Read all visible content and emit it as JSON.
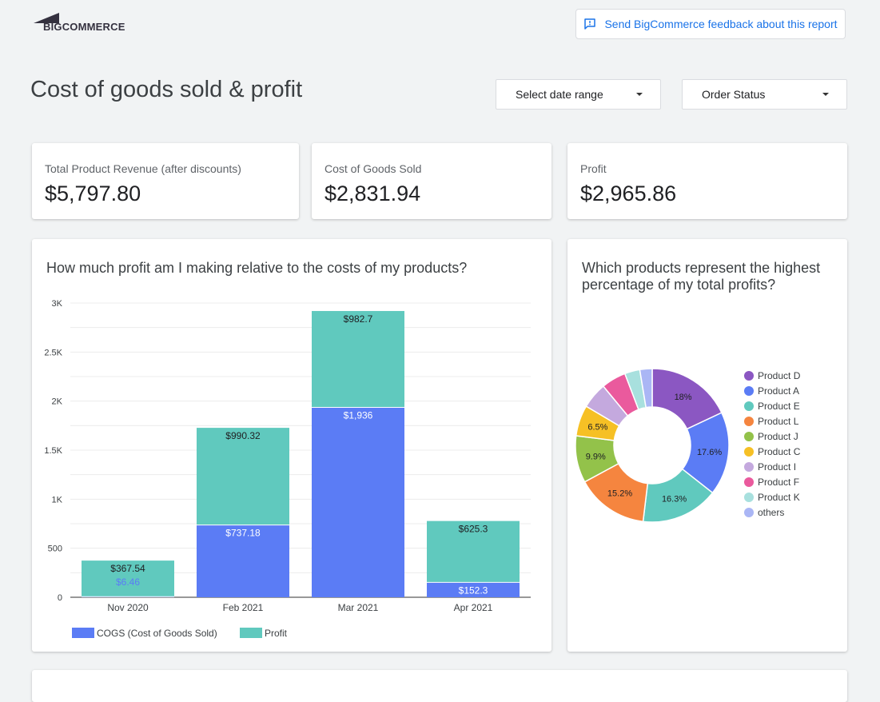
{
  "header": {
    "logo_text": "BIGCOMMERCE",
    "feedback_label": "Send BigCommerce feedback about this report"
  },
  "page": {
    "title": "Cost of goods sold & profit"
  },
  "filters": {
    "date_range_label": "Select date range",
    "order_status_label": "Order Status"
  },
  "kpis": [
    {
      "label": "Total Product Revenue (after discounts)",
      "value": "$5,797.80"
    },
    {
      "label": "Cost of Goods Sold",
      "value": "$2,831.94"
    },
    {
      "label": "Profit",
      "value": "$2,965.86"
    }
  ],
  "colors": {
    "cogs": "#5b7cf5",
    "profit": "#60c9be",
    "accent": "#1a73e8"
  },
  "chart_data": [
    {
      "type": "bar",
      "stacked": true,
      "title": "How much profit am I making relative to the costs of my products?",
      "categories": [
        "Nov 2020",
        "Feb 2021",
        "Mar 2021",
        "Apr 2021"
      ],
      "series": [
        {
          "name": "COGS (Cost of Goods Sold)",
          "values": [
            6.46,
            737.18,
            1936,
            152.3
          ],
          "labels": [
            "$6.46",
            "$737.18",
            "$1,936",
            "$152.3"
          ]
        },
        {
          "name": "Profit",
          "values": [
            367.54,
            990.32,
            982.7,
            625.3
          ],
          "labels": [
            "$367.54",
            "$990.32",
            "$982.7",
            "$625.3"
          ]
        }
      ],
      "ylim": [
        0,
        3000
      ],
      "yticks": [
        0,
        500,
        1000,
        1500,
        2000,
        2500,
        3000
      ],
      "ytick_labels": [
        "0",
        "500",
        "1K",
        "1.5K",
        "2K",
        "2.5K",
        "3K"
      ],
      "legend": "bottom-left"
    },
    {
      "type": "pie",
      "donut": true,
      "title": "Which products represent the highest percentage of my total profits?",
      "labels": [
        "Product D",
        "Product A",
        "Product E",
        "Product L",
        "Product J",
        "Product C",
        "Product I",
        "Product F",
        "Product K",
        "others"
      ],
      "values": [
        18,
        17.6,
        16.3,
        15.2,
        9.9,
        6.5,
        5.5,
        5.2,
        3.2,
        2.6
      ],
      "slice_labels": [
        "18%",
        "17.6%",
        "16.3%",
        "15.2%",
        "9.9%",
        "6.5%",
        "",
        "",
        "",
        ""
      ],
      "colors": [
        "#8b57c2",
        "#5b7cf5",
        "#60c9be",
        "#f5853f",
        "#93c24a",
        "#f6c025",
        "#c4a9de",
        "#ea5a9d",
        "#a8e0de",
        "#aab6f5"
      ],
      "legend": "right"
    }
  ]
}
